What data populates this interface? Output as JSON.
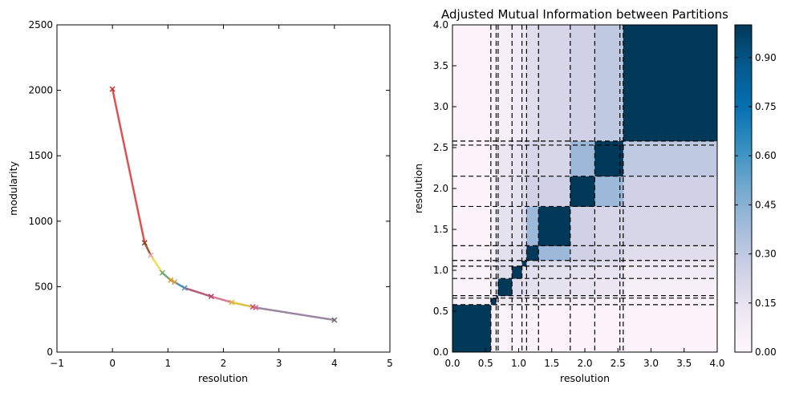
{
  "chart_data": [
    {
      "type": "line",
      "title": "",
      "xlabel": "resolution",
      "ylabel": "modularity",
      "xlim": [
        -1,
        5
      ],
      "ylim": [
        0,
        2500
      ],
      "x_ticks": [
        "−1",
        "0",
        "1",
        "2",
        "3",
        "4",
        "5"
      ],
      "y_ticks": [
        "0",
        "500",
        "1000",
        "1500",
        "2000",
        "2500"
      ],
      "points": [
        {
          "x": 0.0,
          "y": 2010
        },
        {
          "x": 0.58,
          "y": 835
        },
        {
          "x": 0.69,
          "y": 740
        },
        {
          "x": 0.9,
          "y": 605
        },
        {
          "x": 1.05,
          "y": 550
        },
        {
          "x": 1.12,
          "y": 535
        },
        {
          "x": 1.3,
          "y": 490
        },
        {
          "x": 1.78,
          "y": 425
        },
        {
          "x": 2.15,
          "y": 380
        },
        {
          "x": 2.53,
          "y": 345
        },
        {
          "x": 2.58,
          "y": 340
        },
        {
          "x": 4.0,
          "y": 245
        }
      ],
      "segment_colors": [
        "#e05050",
        "#a05a32",
        "#f0dc50",
        "#6aaa6a",
        "#e0a030",
        "#508cb4",
        "#b45a7a",
        "#d77894",
        "#e0c040",
        "#d26e8c",
        "#9b87a0"
      ],
      "marker_colors": [
        "#d62728",
        "#8c3c1e",
        "#e8a0b0",
        "#6aaa6a",
        "#e09020",
        "#c8a050",
        "#508cb4",
        "#b43c64",
        "#d2b430",
        "#c85078",
        "#e06080",
        "#646464"
      ],
      "grid": false
    },
    {
      "type": "heatmap",
      "title": "Adjusted Mutual Information between Partitions",
      "xlabel": "resolution",
      "ylabel": "resolution",
      "xlim": [
        0,
        4
      ],
      "ylim": [
        0,
        4
      ],
      "x_ticks": [
        "0.0",
        "0.5",
        "1.0",
        "1.5",
        "2.0",
        "2.5",
        "3.0",
        "3.5",
        "4.0"
      ],
      "y_ticks": [
        "0.0",
        "0.5",
        "1.0",
        "1.5",
        "2.0",
        "2.5",
        "3.0",
        "3.5",
        "4.0"
      ],
      "boundaries": [
        0.0,
        0.58,
        0.66,
        0.69,
        0.9,
        1.05,
        1.12,
        1.3,
        1.78,
        2.15,
        2.53,
        2.58,
        4.0
      ],
      "matrix": [
        [
          1.0,
          0.05,
          0.05,
          0.03,
          0.03,
          0.03,
          0.03,
          0.02,
          0.02,
          0.02,
          0.02,
          0.02
        ],
        [
          0.05,
          1.0,
          0.12,
          0.1,
          0.09,
          0.08,
          0.07,
          0.06,
          0.06,
          0.05,
          0.05,
          0.02
        ],
        [
          0.05,
          0.12,
          1.0,
          0.18,
          0.16,
          0.15,
          0.14,
          0.12,
          0.11,
          0.1,
          0.1,
          0.02
        ],
        [
          0.03,
          0.1,
          0.18,
          1.0,
          0.18,
          0.17,
          0.16,
          0.15,
          0.14,
          0.13,
          0.13,
          0.06
        ],
        [
          0.03,
          0.09,
          0.16,
          0.18,
          1.0,
          0.18,
          0.17,
          0.16,
          0.15,
          0.14,
          0.14,
          0.09
        ],
        [
          0.03,
          0.08,
          0.15,
          0.17,
          0.18,
          1.0,
          0.22,
          0.2,
          0.19,
          0.18,
          0.18,
          0.12
        ],
        [
          0.03,
          0.07,
          0.14,
          0.16,
          0.17,
          0.22,
          1.0,
          0.4,
          0.25,
          0.22,
          0.22,
          0.18
        ],
        [
          0.02,
          0.06,
          0.12,
          0.15,
          0.16,
          0.2,
          0.4,
          1.0,
          0.25,
          0.22,
          0.22,
          0.22
        ],
        [
          0.02,
          0.06,
          0.11,
          0.14,
          0.15,
          0.19,
          0.25,
          0.25,
          1.0,
          0.4,
          0.4,
          0.25
        ],
        [
          0.02,
          0.05,
          0.1,
          0.13,
          0.14,
          0.18,
          0.22,
          0.22,
          0.4,
          1.0,
          1.0,
          0.3
        ],
        [
          0.02,
          0.05,
          0.1,
          0.13,
          0.14,
          0.18,
          0.22,
          0.22,
          0.4,
          1.0,
          1.0,
          0.3
        ],
        [
          0.02,
          0.02,
          0.02,
          0.06,
          0.09,
          0.12,
          0.18,
          0.22,
          0.25,
          0.3,
          0.3,
          1.0
        ]
      ],
      "colorbar": {
        "ticks": [
          "0.00",
          "0.15",
          "0.30",
          "0.45",
          "0.60",
          "0.75",
          "0.90"
        ],
        "range": [
          0,
          1
        ],
        "colormap": "PuBu"
      }
    }
  ]
}
